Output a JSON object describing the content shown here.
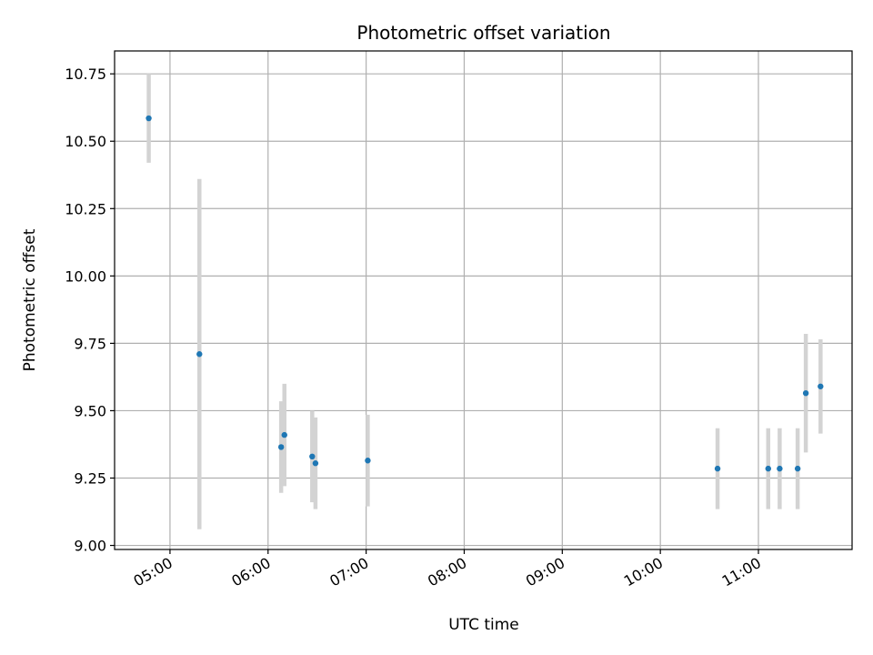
{
  "chart_data": {
    "type": "scatter",
    "title": "Photometric offset variation",
    "xlabel": "UTC time",
    "ylabel": "Photometric offset",
    "x_tick_labels": [
      "05:00",
      "06:00",
      "07:00",
      "08:00",
      "09:00",
      "10:00",
      "11:00"
    ],
    "x_tick_hours": [
      5,
      6,
      7,
      8,
      9,
      10,
      11
    ],
    "y_tick_labels": [
      "9.00",
      "9.25",
      "9.50",
      "9.75",
      "10.00",
      "10.25",
      "10.50",
      "10.75"
    ],
    "y_ticks": [
      9.0,
      9.25,
      9.5,
      9.75,
      10.0,
      10.25,
      10.5,
      10.75
    ],
    "xlim_hours": [
      4.435,
      11.955
    ],
    "ylim": [
      8.985,
      10.835
    ],
    "grid": true,
    "colors": {
      "points": "#1f77b4",
      "error_bars": "#d3d3d3",
      "grid": "#b0b0b0"
    },
    "series": [
      {
        "points": [
          {
            "x": "04:47",
            "y": 10.585,
            "err": 0.165
          },
          {
            "x": "05:18",
            "y": 9.71,
            "err": 0.65
          },
          {
            "x": "06:08",
            "y": 9.365,
            "err": 0.17
          },
          {
            "x": "06:10",
            "y": 9.41,
            "err": 0.19
          },
          {
            "x": "06:27",
            "y": 9.33,
            "err": 0.17
          },
          {
            "x": "06:29",
            "y": 9.305,
            "err": 0.17
          },
          {
            "x": "07:01",
            "y": 9.315,
            "err": 0.17
          },
          {
            "x": "10:35",
            "y": 9.285,
            "err": 0.15
          },
          {
            "x": "11:06",
            "y": 9.285,
            "err": 0.15
          },
          {
            "x": "11:13",
            "y": 9.285,
            "err": 0.15
          },
          {
            "x": "11:24",
            "y": 9.285,
            "err": 0.15
          },
          {
            "x": "11:29",
            "y": 9.565,
            "err": 0.22
          },
          {
            "x": "11:38",
            "y": 9.59,
            "err": 0.175
          }
        ]
      }
    ]
  }
}
